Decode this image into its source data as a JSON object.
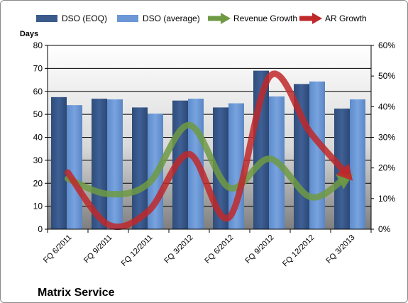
{
  "chart_data": {
    "type": "bar",
    "title": "Matrix Service",
    "ylabel": "Days",
    "categories": [
      "FQ 6/2011",
      "FQ 9/2011",
      "FQ 12/2011",
      "FQ 3/2012",
      "FQ 6/2012",
      "FQ 9/2012",
      "FQ 12/2012",
      "FQ 3/2013"
    ],
    "ylim": [
      0,
      80
    ],
    "yticks": [
      "0",
      "10",
      "20",
      "30",
      "40",
      "50",
      "60",
      "70",
      "80"
    ],
    "y2lim": [
      0,
      60
    ],
    "y2ticks": [
      "0%",
      "10%",
      "20%",
      "30%",
      "40%",
      "50%",
      "60%"
    ],
    "legend_position": "top",
    "series": [
      {
        "name": "DSO (EOQ)",
        "kind": "bar",
        "axis": "left",
        "color": "#3b5b8c",
        "values": [
          57.5,
          56.8,
          53.0,
          56.0,
          53.0,
          69.0,
          63.2,
          52.5
        ]
      },
      {
        "name": "DSO (average)",
        "kind": "bar",
        "axis": "left",
        "color": "#6b97d6",
        "values": [
          54.0,
          56.5,
          50.3,
          56.8,
          54.8,
          57.8,
          64.3,
          56.5
        ]
      },
      {
        "name": "Revenue Growth",
        "kind": "line",
        "axis": "right",
        "color": "#6f9a43",
        "values": [
          16.5,
          11.5,
          15.0,
          34.0,
          13.5,
          23.0,
          10.5,
          17.5
        ]
      },
      {
        "name": "AR Growth",
        "kind": "line",
        "axis": "right",
        "color": "#c0282a",
        "values": [
          18.5,
          1.5,
          6.0,
          24.5,
          4.0,
          50.0,
          31.5,
          16.5
        ]
      }
    ]
  }
}
